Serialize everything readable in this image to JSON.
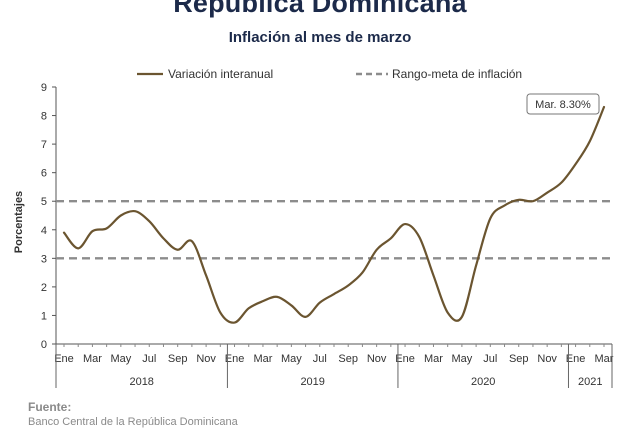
{
  "header": {
    "title": "República Dominicana",
    "subtitle": "Inflación al mes de marzo"
  },
  "chart_data": {
    "type": "line",
    "title": "Inflación al mes de marzo",
    "ylabel": "Porcentajes",
    "xlabel": "",
    "ylim": [
      0,
      9
    ],
    "yticks": [
      0,
      1,
      2,
      3,
      4,
      5,
      6,
      7,
      8,
      9
    ],
    "grid": false,
    "legend": "top",
    "month_tick_labels": [
      "Ene",
      "Mar",
      "May",
      "Jul",
      "Sep",
      "Nov",
      "Ene",
      "Mar",
      "May",
      "Jul",
      "Sep",
      "Nov",
      "Ene",
      "Mar",
      "May",
      "Jul",
      "Sep",
      "Nov",
      "Ene",
      "Mar"
    ],
    "year_labels": [
      "2018",
      "2019",
      "2020",
      "2021"
    ],
    "series": [
      {
        "name": "Variación interanual",
        "color": "#6b5530",
        "style": "solid",
        "x": [
          "2018-01",
          "2018-02",
          "2018-03",
          "2018-04",
          "2018-05",
          "2018-06",
          "2018-07",
          "2018-08",
          "2018-09",
          "2018-10",
          "2018-11",
          "2018-12",
          "2019-01",
          "2019-02",
          "2019-03",
          "2019-04",
          "2019-05",
          "2019-06",
          "2019-07",
          "2019-08",
          "2019-09",
          "2019-10",
          "2019-11",
          "2019-12",
          "2020-01",
          "2020-02",
          "2020-03",
          "2020-04",
          "2020-05",
          "2020-06",
          "2020-07",
          "2020-08",
          "2020-09",
          "2020-10",
          "2020-11",
          "2020-12",
          "2021-01",
          "2021-02",
          "2021-03"
        ],
        "values": [
          3.9,
          3.35,
          3.95,
          4.05,
          4.5,
          4.65,
          4.3,
          3.7,
          3.3,
          3.6,
          2.4,
          1.1,
          0.75,
          1.25,
          1.5,
          1.65,
          1.35,
          0.95,
          1.45,
          1.75,
          2.05,
          2.5,
          3.3,
          3.7,
          4.2,
          3.75,
          2.4,
          1.1,
          0.95,
          2.75,
          4.4,
          4.85,
          5.05,
          5.0,
          5.3,
          5.65,
          6.3,
          7.1,
          8.3
        ]
      },
      {
        "name": "Rango-meta de inflación",
        "color": "#8c8c8c",
        "style": "dashed",
        "bands": [
          5,
          3
        ]
      }
    ],
    "annotations": [
      {
        "text": "Mar. 8.30%",
        "x": "2021-03",
        "y": 8.3
      }
    ]
  },
  "footer": {
    "source_label": "Fuente:",
    "source_text": "Banco Central de la República Dominicana"
  }
}
